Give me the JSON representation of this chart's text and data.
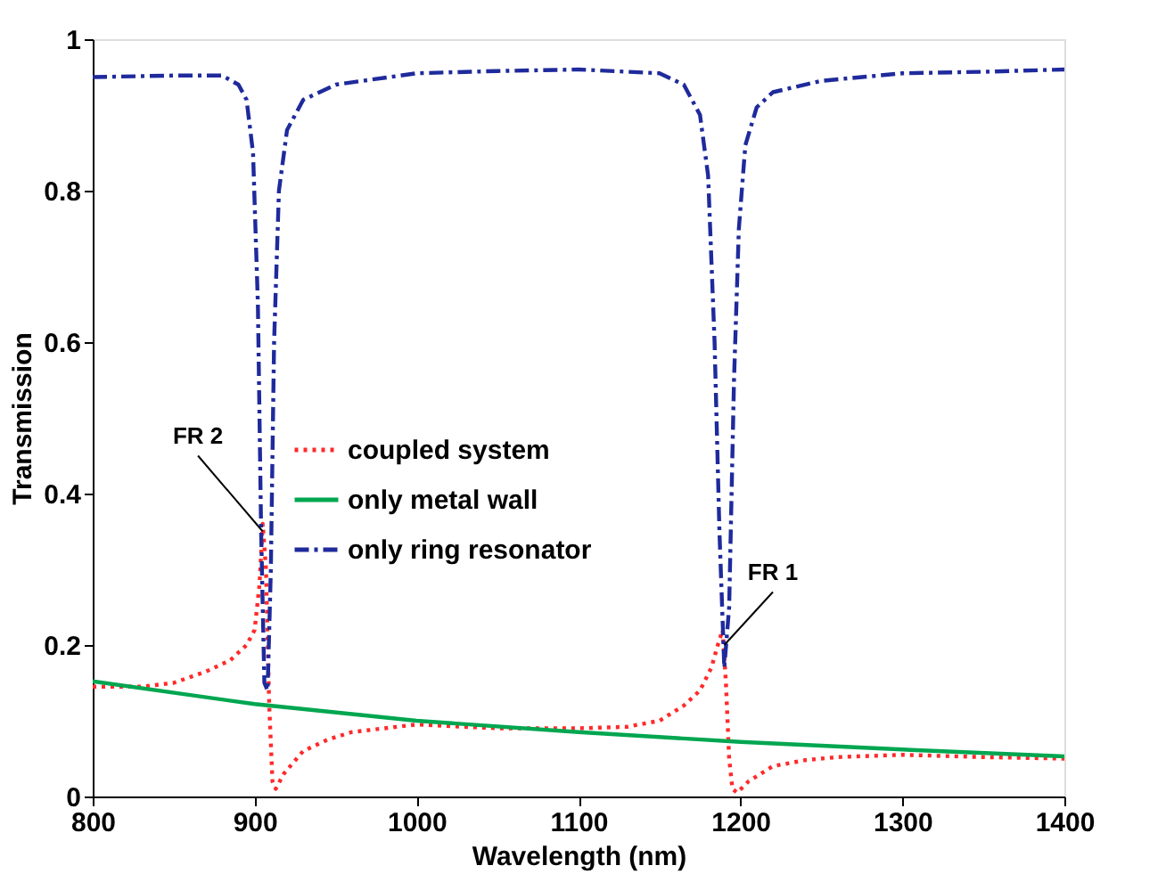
{
  "chart_data": {
    "type": "line",
    "xlabel": "Wavelength (nm)",
    "ylabel": "Transmission",
    "xlim": [
      800,
      1400
    ],
    "xticks": [
      800,
      900,
      1000,
      1100,
      1200,
      1300,
      1400
    ],
    "ylim": [
      0,
      1
    ],
    "yticks": [
      0,
      0.2,
      0.4,
      0.6,
      0.8,
      1
    ],
    "grid": false,
    "legend": "left",
    "series": [
      {
        "name": "coupled system",
        "color": "#ff2a2a",
        "line_style": "dotted",
        "x": [
          800,
          830,
          850,
          870,
          885,
          895,
          900,
          903,
          905,
          907,
          909,
          911,
          913,
          918,
          930,
          945,
          960,
          980,
          1000,
          1050,
          1100,
          1130,
          1150,
          1165,
          1175,
          1182,
          1186,
          1189,
          1191,
          1193,
          1195,
          1198,
          1205,
          1220,
          1240,
          1260,
          1300,
          1350,
          1400
        ],
        "values": [
          0.145,
          0.145,
          0.15,
          0.165,
          0.18,
          0.2,
          0.22,
          0.28,
          0.36,
          0.3,
          0.12,
          0.02,
          0.01,
          0.03,
          0.06,
          0.075,
          0.085,
          0.09,
          0.095,
          0.09,
          0.09,
          0.092,
          0.1,
          0.12,
          0.14,
          0.17,
          0.2,
          0.22,
          0.15,
          0.05,
          0.01,
          0.005,
          0.02,
          0.04,
          0.048,
          0.052,
          0.055,
          0.052,
          0.05
        ]
      },
      {
        "name": "only metal wall",
        "color": "#00a650",
        "line_style": "solid",
        "x": [
          800,
          900,
          1000,
          1100,
          1200,
          1300,
          1400
        ],
        "values": [
          0.152,
          0.122,
          0.1,
          0.085,
          0.072,
          0.062,
          0.053
        ]
      },
      {
        "name": "only  ring resonator",
        "color": "#1f2a9c",
        "line_style": "dashed",
        "x": [
          800,
          850,
          880,
          890,
          895,
          899,
          902,
          904,
          906,
          908,
          910,
          912,
          915,
          920,
          930,
          950,
          1000,
          1050,
          1100,
          1150,
          1165,
          1175,
          1180,
          1184,
          1187,
          1190,
          1193,
          1196,
          1199,
          1203,
          1210,
          1220,
          1250,
          1300,
          1350,
          1400
        ],
        "values": [
          0.95,
          0.952,
          0.952,
          0.94,
          0.92,
          0.85,
          0.65,
          0.35,
          0.15,
          0.14,
          0.3,
          0.6,
          0.8,
          0.88,
          0.92,
          0.94,
          0.955,
          0.958,
          0.96,
          0.955,
          0.94,
          0.9,
          0.82,
          0.6,
          0.35,
          0.17,
          0.25,
          0.55,
          0.75,
          0.86,
          0.91,
          0.93,
          0.945,
          0.955,
          0.957,
          0.96
        ]
      }
    ],
    "annotations": [
      {
        "text": "FR 2",
        "x": 905,
        "y": 0.35
      },
      {
        "text": "FR 1",
        "x": 1190,
        "y": 0.2
      }
    ]
  }
}
